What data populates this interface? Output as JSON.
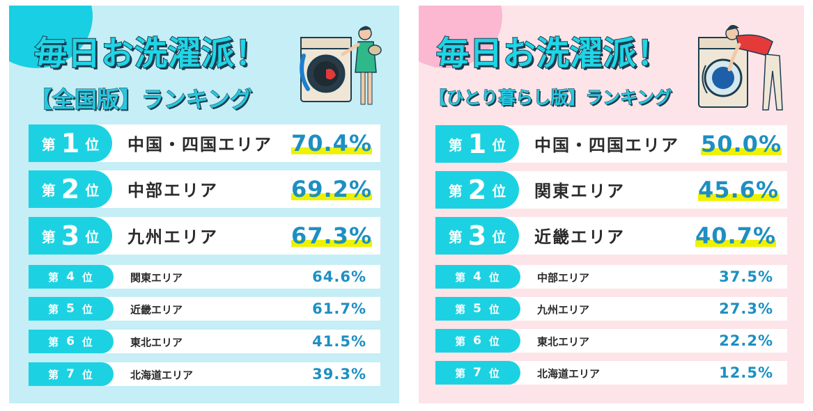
{
  "colors": {
    "accent": "#1cd2e2",
    "percent": "#1d8fc2",
    "highlight": "#eef200",
    "left_bg": "#c5eef6",
    "right_bg": "#fde4e8"
  },
  "chart_data": [
    {
      "type": "table",
      "title": "毎日お洗濯派！",
      "subtitle": "【全国版】ランキング",
      "rows": [
        {
          "rank_prefix": "第",
          "rank": "1",
          "rank_suffix": "位",
          "area": "中国・四国エリア",
          "value": 70.4,
          "value_label": "70.4%"
        },
        {
          "rank_prefix": "第",
          "rank": "2",
          "rank_suffix": "位",
          "area": "中部エリア",
          "value": 69.2,
          "value_label": "69.2%"
        },
        {
          "rank_prefix": "第",
          "rank": "3",
          "rank_suffix": "位",
          "area": "九州エリア",
          "value": 67.3,
          "value_label": "67.3%"
        },
        {
          "rank_prefix": "第",
          "rank": "4",
          "rank_suffix": "位",
          "area": "関東エリア",
          "value": 64.6,
          "value_label": "64.6%"
        },
        {
          "rank_prefix": "第",
          "rank": "5",
          "rank_suffix": "位",
          "area": "近畿エリア",
          "value": 61.7,
          "value_label": "61.7%"
        },
        {
          "rank_prefix": "第",
          "rank": "6",
          "rank_suffix": "位",
          "area": "東北エリア",
          "value": 41.5,
          "value_label": "41.5%"
        },
        {
          "rank_prefix": "第",
          "rank": "7",
          "rank_suffix": "位",
          "area": "北海道エリア",
          "value": 39.3,
          "value_label": "39.3%"
        }
      ]
    },
    {
      "type": "table",
      "title": "毎日お洗濯派！",
      "subtitle": "【ひとり暮らし版】ランキング",
      "rows": [
        {
          "rank_prefix": "第",
          "rank": "1",
          "rank_suffix": "位",
          "area": "中国・四国エリア",
          "value": 50.0,
          "value_label": "50.0%"
        },
        {
          "rank_prefix": "第",
          "rank": "2",
          "rank_suffix": "位",
          "area": "関東エリア",
          "value": 45.6,
          "value_label": "45.6%"
        },
        {
          "rank_prefix": "第",
          "rank": "3",
          "rank_suffix": "位",
          "area": "近畿エリア",
          "value": 40.7,
          "value_label": "40.7%"
        },
        {
          "rank_prefix": "第",
          "rank": "4",
          "rank_suffix": "位",
          "area": "中部エリア",
          "value": 37.5,
          "value_label": "37.5%"
        },
        {
          "rank_prefix": "第",
          "rank": "5",
          "rank_suffix": "位",
          "area": "九州エリア",
          "value": 27.3,
          "value_label": "27.3%"
        },
        {
          "rank_prefix": "第",
          "rank": "6",
          "rank_suffix": "位",
          "area": "東北エリア",
          "value": 22.2,
          "value_label": "22.2%"
        },
        {
          "rank_prefix": "第",
          "rank": "7",
          "rank_suffix": "位",
          "area": "北海道エリア",
          "value": 12.5,
          "value_label": "12.5%"
        }
      ]
    }
  ],
  "illustrations": {
    "left": "person-loading-washing-machine-icon",
    "right": "person-bending-at-washing-machine-icon"
  }
}
